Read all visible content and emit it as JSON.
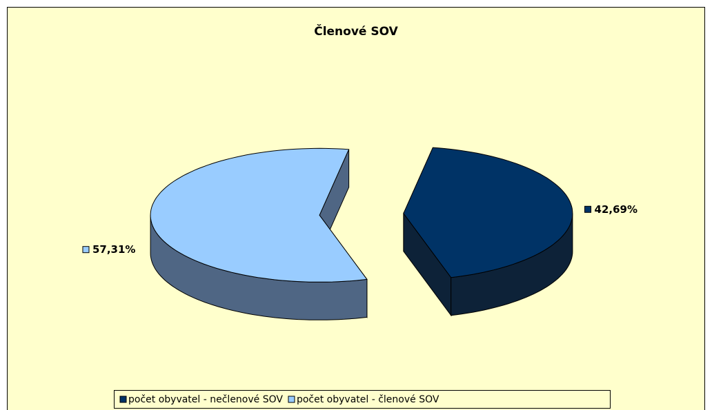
{
  "chart_data": {
    "type": "pie3d",
    "title": "Členové SOV",
    "categories": [
      "počet obyvatel - nečlenové SOV",
      "počet obyvatel - členové SOV"
    ],
    "values": [
      42.69,
      57.31
    ],
    "value_labels": [
      "42,69%",
      "57,31%"
    ],
    "colors": [
      "#003366",
      "#99ccff"
    ],
    "side_colors": [
      "#0d2238",
      "#4f6684"
    ],
    "legend": "bottom"
  }
}
